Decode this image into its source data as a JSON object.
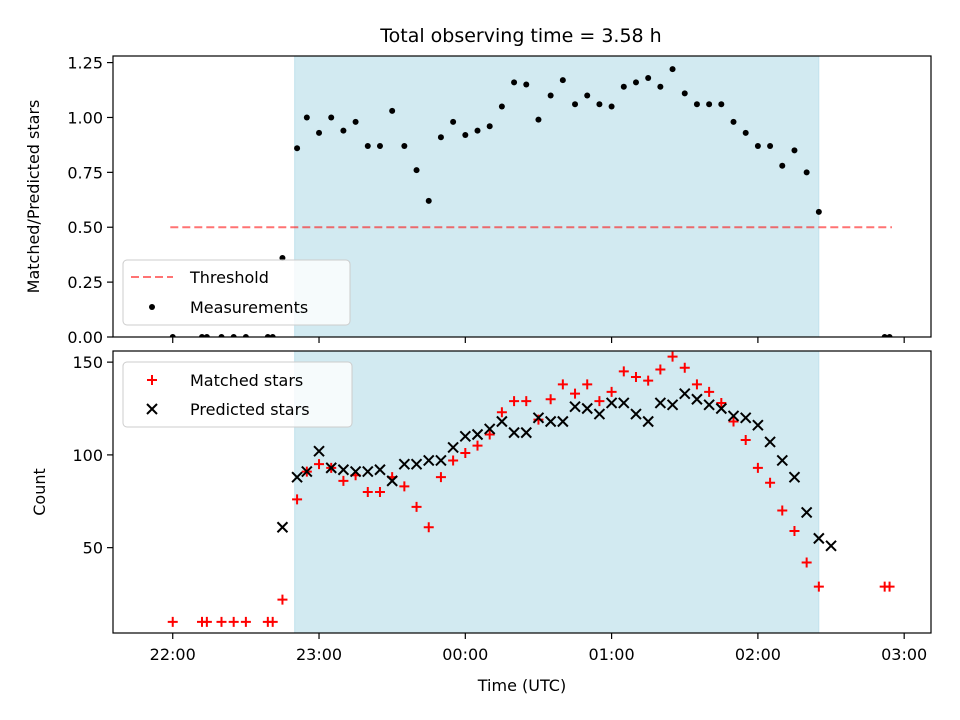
{
  "title": "Total observing time = 3.58 h",
  "colors": {
    "shade": "#add8e6",
    "threshold": "#ff0000",
    "measurement": "#000000",
    "matched": "#ff0000",
    "predicted": "#000000"
  },
  "chart_data": [
    {
      "type": "scatter",
      "ylabel": "Matched/Predicted stars",
      "ylim": [
        0,
        1.28
      ],
      "yticks": [
        0.0,
        0.25,
        0.5,
        0.75,
        1.0,
        1.25
      ],
      "ytick_labels": [
        "0.00",
        "0.25",
        "0.50",
        "0.75",
        "1.00",
        "1.25"
      ],
      "shaded_span": [
        "22:50",
        "02:25"
      ],
      "threshold": {
        "name": "Threshold",
        "y": 0.5,
        "x": [
          "21:59",
          "02:55"
        ],
        "style": "dashed"
      },
      "legend": [
        "Threshold",
        "Measurements"
      ],
      "legend_position": "lower-left",
      "series": [
        {
          "name": "Measurements",
          "points": [
            [
              "22:00",
              0.0
            ],
            [
              "22:12",
              0.0
            ],
            [
              "22:14",
              0.0
            ],
            [
              "22:20",
              0.0
            ],
            [
              "22:25",
              0.0
            ],
            [
              "22:30",
              0.0
            ],
            [
              "22:39",
              0.0
            ],
            [
              "22:41",
              0.0
            ],
            [
              "22:45",
              0.36
            ],
            [
              "22:51",
              0.86
            ],
            [
              "22:55",
              1.0
            ],
            [
              "23:00",
              0.93
            ],
            [
              "23:05",
              1.0
            ],
            [
              "23:10",
              0.94
            ],
            [
              "23:15",
              0.98
            ],
            [
              "23:20",
              0.87
            ],
            [
              "23:25",
              0.87
            ],
            [
              "23:30",
              1.03
            ],
            [
              "23:35",
              0.87
            ],
            [
              "23:40",
              0.76
            ],
            [
              "23:45",
              0.62
            ],
            [
              "23:50",
              0.91
            ],
            [
              "23:55",
              0.98
            ],
            [
              "00:00",
              0.92
            ],
            [
              "00:05",
              0.94
            ],
            [
              "00:10",
              0.96
            ],
            [
              "00:15",
              1.05
            ],
            [
              "00:20",
              1.16
            ],
            [
              "00:25",
              1.15
            ],
            [
              "00:30",
              0.99
            ],
            [
              "00:35",
              1.1
            ],
            [
              "00:40",
              1.17
            ],
            [
              "00:45",
              1.06
            ],
            [
              "00:50",
              1.1
            ],
            [
              "00:55",
              1.06
            ],
            [
              "01:00",
              1.05
            ],
            [
              "01:05",
              1.14
            ],
            [
              "01:10",
              1.16
            ],
            [
              "01:15",
              1.18
            ],
            [
              "01:20",
              1.14
            ],
            [
              "01:25",
              1.22
            ],
            [
              "01:30",
              1.11
            ],
            [
              "01:35",
              1.06
            ],
            [
              "01:40",
              1.06
            ],
            [
              "01:45",
              1.06
            ],
            [
              "01:50",
              0.98
            ],
            [
              "01:55",
              0.93
            ],
            [
              "02:00",
              0.87
            ],
            [
              "02:05",
              0.87
            ],
            [
              "02:10",
              0.78
            ],
            [
              "02:15",
              0.85
            ],
            [
              "02:20",
              0.75
            ],
            [
              "02:25",
              0.57
            ],
            [
              "02:52",
              0.0
            ],
            [
              "02:54",
              0.0
            ]
          ]
        }
      ]
    },
    {
      "type": "scatter",
      "xlabel": "Time (UTC)",
      "ylabel": "Count",
      "ylim": [
        4,
        156
      ],
      "yticks": [
        50,
        100,
        150
      ],
      "ytick_labels": [
        "50",
        "100",
        "150"
      ],
      "xticks": [
        "22:00",
        "23:00",
        "00:00",
        "01:00",
        "02:00",
        "03:00"
      ],
      "xtick_labels": [
        "22:00",
        "23:00",
        "00:00",
        "01:00",
        "02:00",
        "03:00"
      ],
      "shaded_span": [
        "22:50",
        "02:25"
      ],
      "legend": [
        "Matched stars",
        "Predicted stars"
      ],
      "legend_position": "upper-left",
      "series": [
        {
          "name": "Matched stars",
          "marker": "plus",
          "points": [
            [
              "22:00",
              10
            ],
            [
              "22:12",
              10
            ],
            [
              "22:14",
              10
            ],
            [
              "22:20",
              10
            ],
            [
              "22:25",
              10
            ],
            [
              "22:30",
              10
            ],
            [
              "22:39",
              10
            ],
            [
              "22:41",
              10
            ],
            [
              "22:45",
              22
            ],
            [
              "22:51",
              76
            ],
            [
              "22:55",
              91
            ],
            [
              "23:00",
              95
            ],
            [
              "23:05",
              93
            ],
            [
              "23:10",
              86
            ],
            [
              "23:15",
              89
            ],
            [
              "23:20",
              80
            ],
            [
              "23:25",
              80
            ],
            [
              "23:30",
              88
            ],
            [
              "23:35",
              83
            ],
            [
              "23:40",
              72
            ],
            [
              "23:45",
              61
            ],
            [
              "23:50",
              88
            ],
            [
              "23:55",
              97
            ],
            [
              "00:00",
              101
            ],
            [
              "00:05",
              105
            ],
            [
              "00:10",
              111
            ],
            [
              "00:15",
              123
            ],
            [
              "00:20",
              129
            ],
            [
              "00:25",
              129
            ],
            [
              "00:30",
              119
            ],
            [
              "00:35",
              130
            ],
            [
              "00:40",
              138
            ],
            [
              "00:45",
              133
            ],
            [
              "00:50",
              138
            ],
            [
              "00:55",
              129
            ],
            [
              "01:00",
              134
            ],
            [
              "01:05",
              145
            ],
            [
              "01:10",
              142
            ],
            [
              "01:15",
              140
            ],
            [
              "01:20",
              146
            ],
            [
              "01:25",
              153
            ],
            [
              "01:30",
              147
            ],
            [
              "01:35",
              138
            ],
            [
              "01:40",
              134
            ],
            [
              "01:45",
              128
            ],
            [
              "01:50",
              118
            ],
            [
              "01:55",
              108
            ],
            [
              "02:00",
              93
            ],
            [
              "02:05",
              85
            ],
            [
              "02:10",
              70
            ],
            [
              "02:15",
              59
            ],
            [
              "02:20",
              42
            ],
            [
              "02:25",
              29
            ],
            [
              "02:52",
              29
            ],
            [
              "02:54",
              29
            ]
          ]
        },
        {
          "name": "Predicted stars",
          "marker": "x",
          "points": [
            [
              "22:45",
              61
            ],
            [
              "22:51",
              88
            ],
            [
              "22:55",
              91
            ],
            [
              "23:00",
              102
            ],
            [
              "23:05",
              93
            ],
            [
              "23:10",
              92
            ],
            [
              "23:15",
              91
            ],
            [
              "23:20",
              91
            ],
            [
              "23:25",
              92
            ],
            [
              "23:30",
              86
            ],
            [
              "23:35",
              95
            ],
            [
              "23:40",
              95
            ],
            [
              "23:45",
              97
            ],
            [
              "23:50",
              97
            ],
            [
              "23:55",
              104
            ],
            [
              "00:00",
              110
            ],
            [
              "00:05",
              111
            ],
            [
              "00:10",
              114
            ],
            [
              "00:15",
              118
            ],
            [
              "00:20",
              112
            ],
            [
              "00:25",
              112
            ],
            [
              "00:30",
              120
            ],
            [
              "00:35",
              118
            ],
            [
              "00:40",
              118
            ],
            [
              "00:45",
              126
            ],
            [
              "00:50",
              125
            ],
            [
              "00:55",
              122
            ],
            [
              "01:00",
              128
            ],
            [
              "01:05",
              128
            ],
            [
              "01:10",
              122
            ],
            [
              "01:15",
              118
            ],
            [
              "01:20",
              128
            ],
            [
              "01:25",
              127
            ],
            [
              "01:30",
              133
            ],
            [
              "01:35",
              130
            ],
            [
              "01:40",
              127
            ],
            [
              "01:45",
              125
            ],
            [
              "01:50",
              121
            ],
            [
              "01:55",
              120
            ],
            [
              "02:00",
              116
            ],
            [
              "02:05",
              107
            ],
            [
              "02:10",
              97
            ],
            [
              "02:15",
              88
            ],
            [
              "02:20",
              69
            ],
            [
              "02:25",
              55
            ],
            [
              "02:30",
              51
            ]
          ]
        }
      ]
    }
  ]
}
